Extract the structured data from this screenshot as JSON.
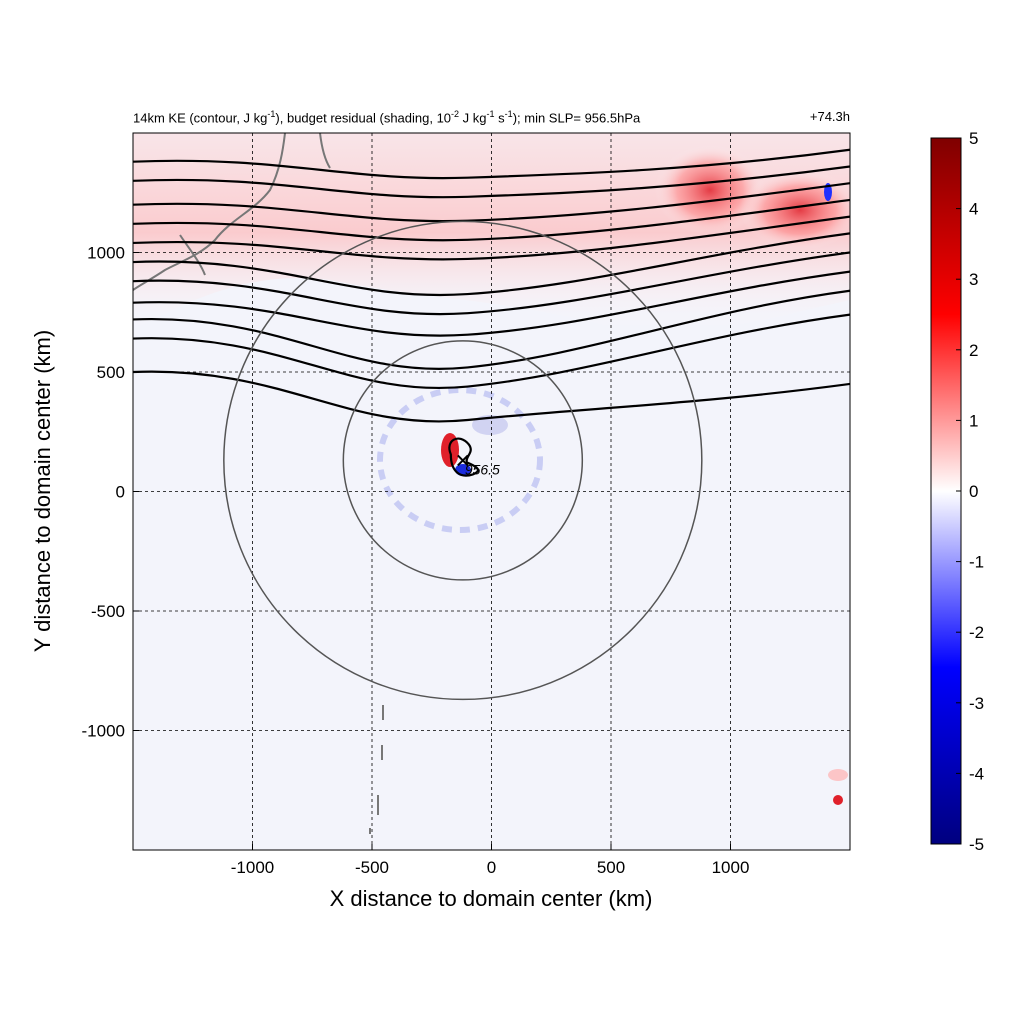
{
  "chart_data": {
    "type": "heatmap",
    "title_parts": {
      "pre": "14km KE (contour, J kg",
      "sup1": "-1",
      "mid1": "), budget residual (shading, 10",
      "sup2": "-2",
      "mid2": " J kg",
      "sup3": "-1",
      "mid3": " s",
      "sup4": "-1",
      "post": "); min SLP= 956.5hPa"
    },
    "time_label": "+74.3h",
    "xlabel": "X distance to domain center (km)",
    "ylabel": "Y distance to domain center (km)",
    "xlim": [
      -1500,
      1500
    ],
    "ylim": [
      -1500,
      1500
    ],
    "xticks": [
      -1000,
      -500,
      0,
      500,
      1000
    ],
    "yticks": [
      -1000,
      -500,
      0,
      500,
      1000
    ],
    "grid": true,
    "grid_style": "dashed",
    "colorbar": {
      "min": -5,
      "max": 5,
      "ticks": [
        5,
        4,
        3,
        2,
        1,
        0,
        -1,
        -2,
        -3,
        -4,
        -5
      ],
      "colors": [
        "#00007f",
        "#0000ff",
        "#ffffff",
        "#ff0000",
        "#7f0000"
      ]
    },
    "center_label": "956.5",
    "center_km": [
      -120,
      130
    ],
    "range_rings_km": [
      500,
      1000
    ],
    "ke_contours_y_at_edges": [
      [
        500,
        450
      ],
      [
        640,
        740
      ],
      [
        720,
        840
      ],
      [
        790,
        920
      ],
      [
        880,
        1000
      ],
      [
        960,
        1080
      ],
      [
        1040,
        1150
      ],
      [
        1120,
        1220
      ],
      [
        1200,
        1290
      ],
      [
        1300,
        1360
      ],
      [
        1380,
        1430
      ]
    ]
  }
}
